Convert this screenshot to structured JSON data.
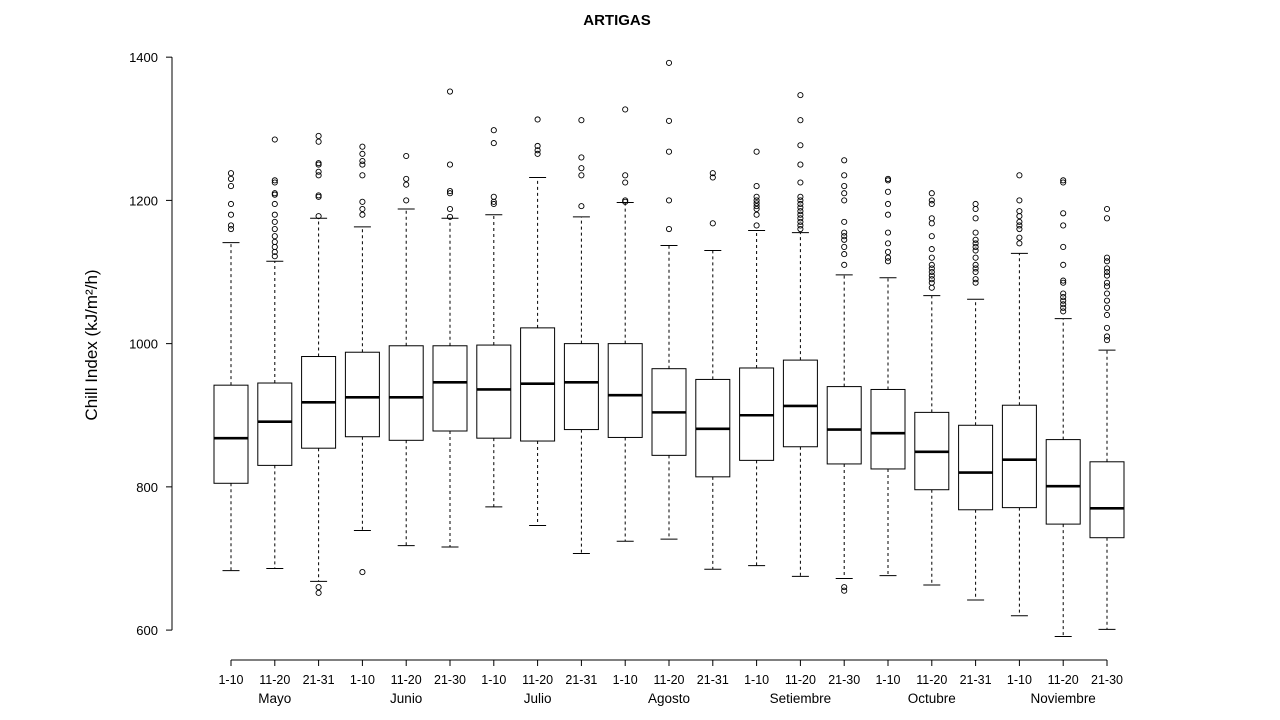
{
  "chart_data": {
    "type": "box",
    "title": "ARTIGAS",
    "ylabel": "Chill Index (kJ/m²/h)",
    "xlabel": "",
    "ylim": [
      575,
      1410
    ],
    "yticks": [
      "600",
      "800",
      "1000",
      "1200",
      "1400"
    ],
    "yticks_values": [
      600,
      800,
      1000,
      1200,
      1400
    ],
    "grid": false,
    "legend": "none",
    "months": [
      {
        "label": "Mayo",
        "first": 0,
        "last": 2
      },
      {
        "label": "Junio",
        "first": 3,
        "last": 5
      },
      {
        "label": "Julio",
        "first": 6,
        "last": 8
      },
      {
        "label": "Agosto",
        "first": 9,
        "last": 11
      },
      {
        "label": "Setiembre",
        "first": 12,
        "last": 14
      },
      {
        "label": "Octubre",
        "first": 15,
        "last": 17
      },
      {
        "label": "Noviembre",
        "first": 18,
        "last": 20
      }
    ],
    "boxes": [
      {
        "label": "1-10",
        "min": 683,
        "q1": 805,
        "median": 868,
        "q3": 942,
        "max": 1141,
        "outliers": [
          1160,
          1165,
          1180,
          1195,
          1220,
          1230,
          1238
        ]
      },
      {
        "label": "11-20",
        "min": 686,
        "q1": 830,
        "median": 891,
        "q3": 945,
        "max": 1115,
        "outliers": [
          1122,
          1128,
          1135,
          1142,
          1150,
          1160,
          1170,
          1180,
          1195,
          1208,
          1210,
          1225,
          1228,
          1285
        ]
      },
      {
        "label": "21-31",
        "min": 668,
        "q1": 854,
        "median": 918,
        "q3": 982,
        "max": 1175,
        "outliers": [
          652,
          660,
          1178,
          1205,
          1207,
          1235,
          1240,
          1250,
          1252,
          1282,
          1290
        ]
      },
      {
        "label": "1-10",
        "min": 739,
        "q1": 870,
        "median": 925,
        "q3": 988,
        "max": 1163,
        "outliers": [
          681,
          1180,
          1188,
          1198,
          1235,
          1250,
          1255,
          1265,
          1275
        ]
      },
      {
        "label": "11-20",
        "min": 718,
        "q1": 865,
        "median": 925,
        "q3": 997,
        "max": 1188,
        "outliers": [
          1200,
          1222,
          1230,
          1262
        ]
      },
      {
        "label": "21-30",
        "min": 716,
        "q1": 878,
        "median": 946,
        "q3": 997,
        "max": 1175,
        "outliers": [
          1177,
          1188,
          1210,
          1213,
          1250,
          1352
        ]
      },
      {
        "label": "1-10",
        "min": 772,
        "q1": 868,
        "median": 936,
        "q3": 998,
        "max": 1180,
        "outliers": [
          1195,
          1198,
          1205,
          1280,
          1298
        ]
      },
      {
        "label": "11-20",
        "min": 746,
        "q1": 864,
        "median": 944,
        "q3": 1022,
        "max": 1232,
        "outliers": [
          1265,
          1270,
          1276,
          1313
        ]
      },
      {
        "label": "21-31",
        "min": 707,
        "q1": 880,
        "median": 946,
        "q3": 1000,
        "max": 1177,
        "outliers": [
          1192,
          1235,
          1245,
          1260,
          1312
        ]
      },
      {
        "label": "1-10",
        "min": 724,
        "q1": 869,
        "median": 928,
        "q3": 1000,
        "max": 1197,
        "outliers": [
          1198,
          1200,
          1225,
          1235,
          1327
        ]
      },
      {
        "label": "11-20",
        "min": 727,
        "q1": 844,
        "median": 904,
        "q3": 965,
        "max": 1137,
        "outliers": [
          1160,
          1200,
          1268,
          1311,
          1392
        ]
      },
      {
        "label": "21-31",
        "min": 685,
        "q1": 814,
        "median": 881,
        "q3": 950,
        "max": 1130,
        "outliers": [
          1168,
          1232,
          1238
        ]
      },
      {
        "label": "1-10",
        "min": 690,
        "q1": 837,
        "median": 900,
        "q3": 966,
        "max": 1158,
        "outliers": [
          1165,
          1180,
          1188,
          1192,
          1196,
          1200,
          1205,
          1220,
          1268
        ]
      },
      {
        "label": "11-20",
        "min": 675,
        "q1": 856,
        "median": 913,
        "q3": 977,
        "max": 1155,
        "outliers": [
          1160,
          1165,
          1170,
          1175,
          1180,
          1185,
          1190,
          1195,
          1200,
          1205,
          1225,
          1250,
          1277,
          1312,
          1347
        ]
      },
      {
        "label": "21-30",
        "min": 672,
        "q1": 832,
        "median": 880,
        "q3": 940,
        "max": 1096,
        "outliers": [
          655,
          660,
          1110,
          1125,
          1135,
          1145,
          1150,
          1155,
          1170,
          1200,
          1210,
          1220,
          1235,
          1256
        ]
      },
      {
        "label": "1-10",
        "min": 676,
        "q1": 825,
        "median": 875,
        "q3": 936,
        "max": 1092,
        "outliers": [
          1115,
          1120,
          1128,
          1140,
          1155,
          1180,
          1195,
          1212,
          1228,
          1230
        ]
      },
      {
        "label": "11-20",
        "min": 663,
        "q1": 796,
        "median": 849,
        "q3": 904,
        "max": 1067,
        "outliers": [
          1078,
          1085,
          1090,
          1095,
          1100,
          1105,
          1110,
          1120,
          1132,
          1150,
          1168,
          1175,
          1195,
          1200,
          1210
        ]
      },
      {
        "label": "21-31",
        "min": 642,
        "q1": 768,
        "median": 820,
        "q3": 886,
        "max": 1062,
        "outliers": [
          1085,
          1090,
          1100,
          1105,
          1110,
          1120,
          1130,
          1135,
          1140,
          1145,
          1155,
          1175,
          1188,
          1195
        ]
      },
      {
        "label": "1-10",
        "min": 620,
        "q1": 771,
        "median": 838,
        "q3": 914,
        "max": 1126,
        "outliers": [
          1140,
          1148,
          1160,
          1165,
          1170,
          1178,
          1185,
          1200,
          1235
        ]
      },
      {
        "label": "11-20",
        "min": 591,
        "q1": 748,
        "median": 801,
        "q3": 866,
        "max": 1035,
        "outliers": [
          1045,
          1050,
          1055,
          1060,
          1065,
          1070,
          1085,
          1088,
          1110,
          1135,
          1165,
          1182,
          1225,
          1228
        ]
      },
      {
        "label": "21-30",
        "min": 601,
        "q1": 729,
        "median": 770,
        "q3": 835,
        "max": 991,
        "outliers": [
          1005,
          1010,
          1022,
          1040,
          1050,
          1060,
          1070,
          1080,
          1085,
          1095,
          1100,
          1105,
          1115,
          1120,
          1175,
          1188
        ]
      }
    ]
  }
}
